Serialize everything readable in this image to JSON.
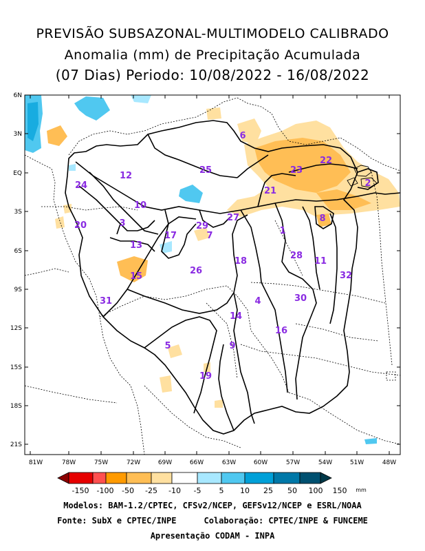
{
  "title": {
    "line1": "PREVISÃO SUBSAZONAL-MULTIMODELO CALIBRADO",
    "line2": "Anomalia (mm) de Precipitação Acumulada",
    "line3": "(07 Dias) Periodo: 10/08/2022 - 16/08/2022"
  },
  "lat_ticks": [
    "6N",
    "3N",
    "EQ",
    "3S",
    "6S",
    "9S",
    "12S",
    "15S",
    "18S",
    "21S"
  ],
  "lon_ticks": [
    "81W",
    "78W",
    "75W",
    "72W",
    "69W",
    "66W",
    "63W",
    "60W",
    "57W",
    "54W",
    "51W",
    "48W"
  ],
  "regions": [
    "1",
    "2",
    "3",
    "4",
    "5",
    "6",
    "7",
    "8",
    "9",
    "10",
    "11",
    "12",
    "13",
    "14",
    "15",
    "16",
    "17",
    "18",
    "19",
    "20",
    "21",
    "22",
    "23",
    "24",
    "25",
    "26",
    "27",
    "28",
    "29",
    "30",
    "31",
    "32"
  ],
  "legend": {
    "unit": "mm",
    "labels": [
      "-150",
      "-100",
      "-50",
      "-25",
      "-10",
      "-5",
      "5",
      "10",
      "25",
      "50",
      "100",
      "150"
    ],
    "colors": [
      "#8b0000",
      "#e60000",
      "#ff5050",
      "#ff9a00",
      "#ffbe55",
      "#ffe0a0",
      "#ffffff",
      "#a8e8ff",
      "#50c8f0",
      "#00a0d8",
      "#0078a8",
      "#005070",
      "#003848"
    ]
  },
  "footer": {
    "line1": "Modelos: BAM-1.2/CPTEC, CFSv2/NCEP, GEFSv12/NCEP e ESRL/NOAA",
    "line2a": "Fonte: SubX e CPTEC/INPE",
    "line2b": "Colaboração: CPTEC/INPE & FUNCEME",
    "line3": "Apresentação CODAM - INPA"
  }
}
